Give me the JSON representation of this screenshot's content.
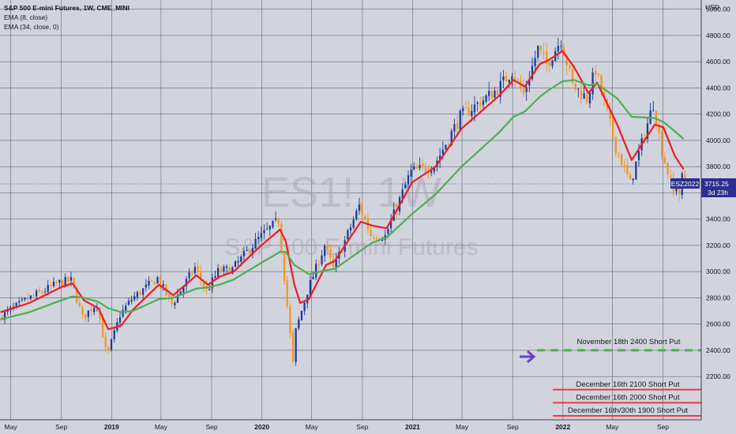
{
  "header": {
    "title": "S&P 500 E-mini Futures, 1W, CME_MINI",
    "studies": [
      "EMA (8, close)",
      "EMA (34, close, 0)"
    ],
    "currency": "USD"
  },
  "watermark": {
    "symbol": "ES1!, 1W",
    "name": "S&P 500 E-mini Futures"
  },
  "price_tag": {
    "contract": "ESZ2022",
    "price": "3715.25",
    "countdown": "3d 23h"
  },
  "colors": {
    "background": "#d1d4dc",
    "grid": "#3f4250",
    "up": "#1e3a9a",
    "down": "#f7941d",
    "ema_fast": "#ee1c24",
    "ema_slow": "#4caf50",
    "level_red": "#f23645",
    "level_green": "#4caf50",
    "arrow": "#6a3fc8",
    "tag": "#2b2f8f"
  },
  "levels": [
    {
      "label": "November 18th 2400 Short Put",
      "price": 2400,
      "price_label": "2400.00",
      "style": "dashed",
      "color": "#4caf50"
    },
    {
      "label": "December 16th 2100 Short Put",
      "price": 2100,
      "price_label": "2100.00",
      "style": "solid",
      "color": "#f23645"
    },
    {
      "label": "December 16th 2000 Short Put",
      "price": 2000,
      "price_label": "2000.00",
      "style": "solid",
      "color": "#f23645"
    },
    {
      "label": "December 16th/30th 1900 Short Put",
      "price": 1900,
      "price_label": "1900.00",
      "style": "solid",
      "color": "#f23645"
    }
  ],
  "chart_data": {
    "type": "candlestick",
    "title": "S&P 500 E-mini Futures, 1W, CME_MINI",
    "ylabel": "USD",
    "ylim": [
      1870,
      5070
    ],
    "y_ticks": [
      2200,
      2400,
      2600,
      2800,
      3000,
      3200,
      3400,
      3600,
      3800,
      4000,
      4200,
      4400,
      4600,
      4800,
      5000
    ],
    "y_tick_labels": [
      "2200.00",
      "2400.00",
      "2600.00",
      "2800.00",
      "3000.00",
      "3200.00",
      "3400.00",
      "3600.00",
      "3800.00",
      "4000.00",
      "4200.00",
      "4400.00",
      "4600.00",
      "4800.00",
      "5000.00"
    ],
    "x_ticks": [
      {
        "date": "2018-05-01",
        "label": "May",
        "bold": false
      },
      {
        "date": "2018-09-01",
        "label": "Sep",
        "bold": false
      },
      {
        "date": "2019-01-01",
        "label": "2019",
        "bold": true
      },
      {
        "date": "2019-05-01",
        "label": "May",
        "bold": false
      },
      {
        "date": "2019-09-01",
        "label": "Sep",
        "bold": false
      },
      {
        "date": "2020-01-01",
        "label": "2020",
        "bold": true
      },
      {
        "date": "2020-05-01",
        "label": "May",
        "bold": false
      },
      {
        "date": "2020-09-01",
        "label": "Sep",
        "bold": false
      },
      {
        "date": "2021-01-01",
        "label": "2021",
        "bold": true
      },
      {
        "date": "2021-05-01",
        "label": "May",
        "bold": false
      },
      {
        "date": "2021-09-01",
        "label": "Sep",
        "bold": false
      },
      {
        "date": "2022-01-01",
        "label": "2022",
        "bold": true
      },
      {
        "date": "2022-05-01",
        "label": "May",
        "bold": false
      },
      {
        "date": "2022-09-01",
        "label": "Sep",
        "bold": false
      }
    ],
    "x_range": [
      "2018-04-05",
      "2022-12-03"
    ],
    "last_price": 3715.25,
    "series_price": [
      [
        "2018-04-06",
        2650
      ],
      [
        "2018-06-15",
        2790
      ],
      [
        "2018-08-31",
        2915
      ],
      [
        "2018-09-28",
        2930
      ],
      [
        "2018-10-26",
        2650
      ],
      [
        "2018-11-30",
        2760
      ],
      [
        "2018-12-24",
        2350
      ],
      [
        "2019-01-25",
        2670
      ],
      [
        "2019-02-22",
        2790
      ],
      [
        "2019-04-26",
        2950
      ],
      [
        "2019-05-31",
        2750
      ],
      [
        "2019-07-26",
        3030
      ],
      [
        "2019-08-23",
        2850
      ],
      [
        "2019-09-20",
        3000
      ],
      [
        "2019-10-25",
        3020
      ],
      [
        "2019-12-27",
        3250
      ],
      [
        "2020-02-14",
        3390
      ],
      [
        "2020-02-28",
        2960
      ],
      [
        "2020-03-20",
        2300
      ],
      [
        "2020-03-27",
        2550
      ],
      [
        "2020-04-24",
        2850
      ],
      [
        "2020-06-05",
        3200
      ],
      [
        "2020-06-26",
        3020
      ],
      [
        "2020-08-28",
        3500
      ],
      [
        "2020-09-25",
        3280
      ],
      [
        "2020-10-30",
        3270
      ],
      [
        "2020-12-31",
        3760
      ],
      [
        "2021-02-26",
        3810
      ],
      [
        "2021-04-30",
        4180
      ],
      [
        "2021-07-30",
        4390
      ],
      [
        "2021-09-03",
        4530
      ],
      [
        "2021-10-01",
        4350
      ],
      [
        "2021-11-05",
        4700
      ],
      [
        "2021-11-26",
        4580
      ],
      [
        "2021-12-31",
        4770
      ],
      [
        "2022-01-28",
        4420
      ],
      [
        "2022-03-04",
        4320
      ],
      [
        "2022-03-25",
        4540
      ],
      [
        "2022-05-13",
        3950
      ],
      [
        "2022-06-17",
        3670
      ],
      [
        "2022-08-12",
        4280
      ],
      [
        "2022-09-02",
        3920
      ],
      [
        "2022-09-30",
        3600
      ],
      [
        "2022-10-07",
        3680
      ],
      [
        "2022-10-14",
        3600
      ],
      [
        "2022-10-21",
        3715
      ]
    ],
    "series": [
      {
        "name": "EMA (8, close)",
        "values": [
          [
            "2018-04-06",
            2690
          ],
          [
            "2018-06-15",
            2760
          ],
          [
            "2018-08-31",
            2880
          ],
          [
            "2018-09-28",
            2910
          ],
          [
            "2018-10-26",
            2780
          ],
          [
            "2018-11-30",
            2720
          ],
          [
            "2018-12-24",
            2560
          ],
          [
            "2019-01-25",
            2590
          ],
          [
            "2019-02-22",
            2710
          ],
          [
            "2019-04-26",
            2900
          ],
          [
            "2019-05-31",
            2820
          ],
          [
            "2019-07-26",
            2970
          ],
          [
            "2019-08-23",
            2900
          ],
          [
            "2019-09-20",
            2960
          ],
          [
            "2019-10-25",
            3000
          ],
          [
            "2019-12-27",
            3190
          ],
          [
            "2020-02-14",
            3320
          ],
          [
            "2020-02-28",
            3230
          ],
          [
            "2020-03-20",
            2900
          ],
          [
            "2020-04-03",
            2760
          ],
          [
            "2020-04-24",
            2790
          ],
          [
            "2020-06-05",
            3050
          ],
          [
            "2020-06-26",
            3080
          ],
          [
            "2020-08-28",
            3380
          ],
          [
            "2020-09-25",
            3350
          ],
          [
            "2020-10-30",
            3330
          ],
          [
            "2020-12-31",
            3680
          ],
          [
            "2021-02-26",
            3800
          ],
          [
            "2021-04-30",
            4090
          ],
          [
            "2021-07-30",
            4340
          ],
          [
            "2021-09-03",
            4460
          ],
          [
            "2021-10-01",
            4410
          ],
          [
            "2021-11-05",
            4580
          ],
          [
            "2021-11-26",
            4610
          ],
          [
            "2021-12-31",
            4680
          ],
          [
            "2022-01-28",
            4560
          ],
          [
            "2022-03-04",
            4360
          ],
          [
            "2022-03-25",
            4440
          ],
          [
            "2022-05-13",
            4120
          ],
          [
            "2022-06-17",
            3850
          ],
          [
            "2022-08-12",
            4120
          ],
          [
            "2022-09-02",
            4100
          ],
          [
            "2022-09-30",
            3880
          ],
          [
            "2022-10-21",
            3780
          ]
        ]
      },
      {
        "name": "EMA (34, close, 0)",
        "values": [
          [
            "2018-04-06",
            2635
          ],
          [
            "2018-06-15",
            2690
          ],
          [
            "2018-08-31",
            2780
          ],
          [
            "2018-09-28",
            2810
          ],
          [
            "2018-10-26",
            2800
          ],
          [
            "2018-11-30",
            2770
          ],
          [
            "2018-12-24",
            2720
          ],
          [
            "2019-01-25",
            2690
          ],
          [
            "2019-02-22",
            2700
          ],
          [
            "2019-04-26",
            2790
          ],
          [
            "2019-05-31",
            2800
          ],
          [
            "2019-07-26",
            2870
          ],
          [
            "2019-08-23",
            2880
          ],
          [
            "2019-09-20",
            2900
          ],
          [
            "2019-10-25",
            2940
          ],
          [
            "2019-12-27",
            3060
          ],
          [
            "2020-02-14",
            3150
          ],
          [
            "2020-02-28",
            3150
          ],
          [
            "2020-03-20",
            3050
          ],
          [
            "2020-04-24",
            2980
          ],
          [
            "2020-06-05",
            3010
          ],
          [
            "2020-06-26",
            3020
          ],
          [
            "2020-08-28",
            3160
          ],
          [
            "2020-09-25",
            3220
          ],
          [
            "2020-10-30",
            3260
          ],
          [
            "2020-12-31",
            3440
          ],
          [
            "2021-02-26",
            3590
          ],
          [
            "2021-04-30",
            3800
          ],
          [
            "2021-07-30",
            4060
          ],
          [
            "2021-09-03",
            4180
          ],
          [
            "2021-10-01",
            4220
          ],
          [
            "2021-11-05",
            4330
          ],
          [
            "2021-11-26",
            4380
          ],
          [
            "2021-12-31",
            4450
          ],
          [
            "2022-01-28",
            4460
          ],
          [
            "2022-03-04",
            4420
          ],
          [
            "2022-03-25",
            4430
          ],
          [
            "2022-05-13",
            4320
          ],
          [
            "2022-06-17",
            4180
          ],
          [
            "2022-08-12",
            4170
          ],
          [
            "2022-09-02",
            4140
          ],
          [
            "2022-09-30",
            4070
          ],
          [
            "2022-10-21",
            4010
          ]
        ]
      }
    ]
  }
}
